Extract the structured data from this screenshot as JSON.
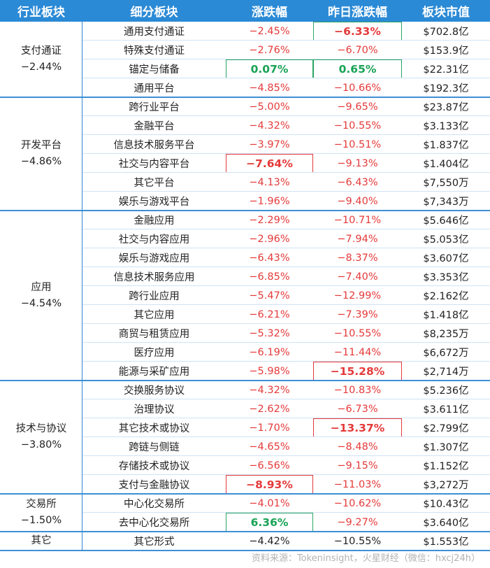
{
  "headers": [
    "行业板块",
    "细分板块",
    "涨跌幅",
    "昨日涨跌幅",
    "板块市值"
  ],
  "groups": [
    {
      "name": "支付通证",
      "change": "−2.44%",
      "rows": [
        {
          "sub": "通用支付通证",
          "chg": "−2.45%",
          "chg_style": "red",
          "prev": "−6.33%",
          "prev_style": "red",
          "prev_box": "green",
          "cap": "$702.8亿"
        },
        {
          "sub": "特殊支付通证",
          "chg": "−2.76%",
          "chg_style": "red",
          "prev": "−6.70%",
          "prev_style": "red",
          "cap": "$153.9亿"
        },
        {
          "sub": "锚定与储备",
          "chg": "0.07%",
          "chg_style": "green",
          "chg_box": "green",
          "prev": "0.65%",
          "prev_style": "green",
          "prev_box": "green",
          "cap": "$22.31亿"
        },
        {
          "sub": "通用平台",
          "chg": "−4.85%",
          "chg_style": "red",
          "prev": "−10.66%",
          "prev_style": "red",
          "cap": "$192.3亿"
        }
      ]
    },
    {
      "name": "开发平台",
      "change": "−4.86%",
      "rows": [
        {
          "sub": "跨行业平台",
          "chg": "−5.00%",
          "chg_style": "red",
          "prev": "−9.65%",
          "prev_style": "red",
          "cap": "$23.87亿"
        },
        {
          "sub": "金融平台",
          "chg": "−4.32%",
          "chg_style": "red",
          "prev": "−10.55%",
          "prev_style": "red",
          "cap": "$3.133亿"
        },
        {
          "sub": "信息技术服务平台",
          "chg": "−3.97%",
          "chg_style": "red",
          "prev": "−10.51%",
          "prev_style": "red",
          "cap": "$1.837亿"
        },
        {
          "sub": "社交与内容平台",
          "chg": "−7.64%",
          "chg_style": "red",
          "chg_box": "red",
          "prev": "−9.13%",
          "prev_style": "red",
          "cap": "$1.404亿"
        },
        {
          "sub": "其它平台",
          "chg": "−4.13%",
          "chg_style": "red",
          "prev": "−6.43%",
          "prev_style": "red",
          "cap": "$7,550万"
        },
        {
          "sub": "娱乐与游戏平台",
          "chg": "−1.96%",
          "chg_style": "red",
          "prev": "−9.40%",
          "prev_style": "red",
          "cap": "$7,343万"
        }
      ]
    },
    {
      "name": "应用",
      "change": "−4.54%",
      "rows": [
        {
          "sub": "金融应用",
          "chg": "−2.29%",
          "chg_style": "red",
          "prev": "−10.71%",
          "prev_style": "red",
          "cap": "$5.646亿"
        },
        {
          "sub": "社交与内容应用",
          "chg": "−2.96%",
          "chg_style": "red",
          "prev": "−7.94%",
          "prev_style": "red",
          "cap": "$5.053亿"
        },
        {
          "sub": "娱乐与游戏应用",
          "chg": "−6.43%",
          "chg_style": "red",
          "prev": "−8.37%",
          "prev_style": "red",
          "cap": "$3.607亿"
        },
        {
          "sub": "信息技术服务应用",
          "chg": "−6.85%",
          "chg_style": "red",
          "prev": "−7.40%",
          "prev_style": "red",
          "cap": "$3.353亿"
        },
        {
          "sub": "跨行业应用",
          "chg": "−5.47%",
          "chg_style": "red",
          "prev": "−12.99%",
          "prev_style": "red",
          "cap": "$2.162亿"
        },
        {
          "sub": "其它应用",
          "chg": "−6.21%",
          "chg_style": "red",
          "prev": "−7.39%",
          "prev_style": "red",
          "cap": "$1.418亿"
        },
        {
          "sub": "商贸与租赁应用",
          "chg": "−5.32%",
          "chg_style": "red",
          "prev": "−10.55%",
          "prev_style": "red",
          "cap": "$8,235万"
        },
        {
          "sub": "医疗应用",
          "chg": "−6.19%",
          "chg_style": "red",
          "prev": "−11.44%",
          "prev_style": "red",
          "cap": "$6,672万"
        },
        {
          "sub": "能源与采矿应用",
          "chg": "−5.98%",
          "chg_style": "red",
          "prev": "−15.28%",
          "prev_style": "red",
          "prev_box": "red",
          "cap": "$2,714万"
        }
      ]
    },
    {
      "name": "技术与协议",
      "change": "−3.80%",
      "rows": [
        {
          "sub": "交换服务协议",
          "chg": "−4.32%",
          "chg_style": "red",
          "prev": "−10.83%",
          "prev_style": "red",
          "cap": "$5.236亿"
        },
        {
          "sub": "治理协议",
          "chg": "−2.62%",
          "chg_style": "red",
          "prev": "−6.73%",
          "prev_style": "red",
          "cap": "$3.611亿"
        },
        {
          "sub": "其它技术或协议",
          "chg": "−1.70%",
          "chg_style": "red",
          "prev": "−13.37%",
          "prev_style": "red",
          "prev_box": "red",
          "cap": "$2.799亿"
        },
        {
          "sub": "跨链与侧链",
          "chg": "−4.65%",
          "chg_style": "red",
          "prev": "−8.48%",
          "prev_style": "red",
          "cap": "$1.307亿"
        },
        {
          "sub": "存储技术或协议",
          "chg": "−6.56%",
          "chg_style": "red",
          "prev": "−9.15%",
          "prev_style": "red",
          "cap": "$1.152亿"
        },
        {
          "sub": "支付与金融协议",
          "chg": "−8.93%",
          "chg_style": "red",
          "chg_box": "red",
          "prev": "−11.03%",
          "prev_style": "red",
          "cap": "$3,272万"
        }
      ]
    },
    {
      "name": "交易所",
      "change": "−1.50%",
      "rows": [
        {
          "sub": "中心化交易所",
          "chg": "−4.01%",
          "chg_style": "red",
          "prev": "−10.62%",
          "prev_style": "red",
          "cap": "$10.43亿"
        },
        {
          "sub": "去中心化交易所",
          "chg": "6.36%",
          "chg_style": "green",
          "chg_box": "green",
          "prev": "−9.27%",
          "prev_style": "red",
          "cap": "$3.640亿"
        }
      ]
    },
    {
      "name": "其它",
      "change": "",
      "rows": [
        {
          "sub": "其它形式",
          "chg": "−4.42%",
          "chg_style": "plain",
          "prev": "−10.55%",
          "prev_style": "plain",
          "cap": "$1.553亿"
        }
      ]
    }
  ],
  "source": "资料来源：Tokeninsight，火星财经（微信：hxcj24h）"
}
